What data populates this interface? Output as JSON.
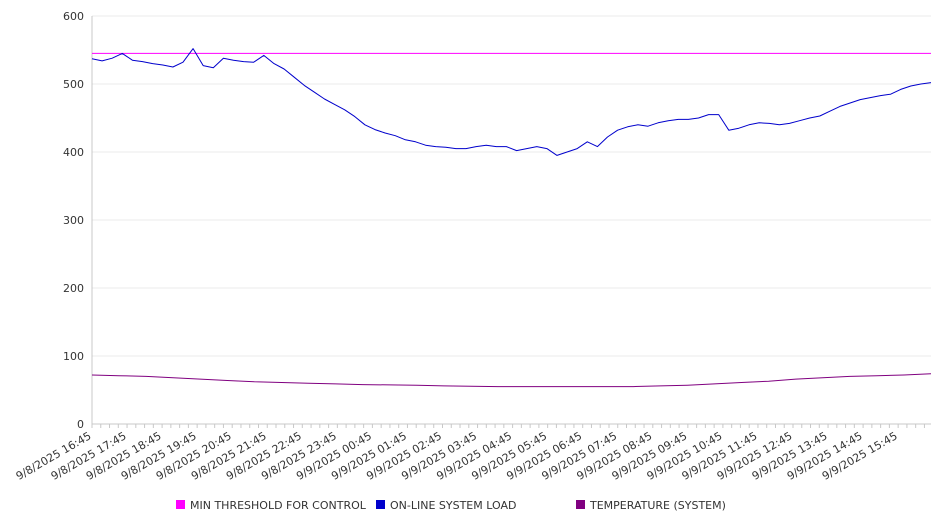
{
  "chart_data": {
    "type": "line",
    "title": "",
    "xlabel": "",
    "ylabel": "",
    "ylim": [
      0,
      600
    ],
    "yticks": [
      "0",
      "100",
      "200",
      "300",
      "400",
      "500",
      "600"
    ],
    "grid": "horizontal",
    "legend_position": "bottom",
    "x_tick_labels": [
      "9/8/2025 16:45",
      "9/8/2025 17:45",
      "9/8/2025 18:45",
      "9/8/2025 19:45",
      "9/8/2025 20:45",
      "9/8/2025 21:45",
      "9/8/2025 22:45",
      "9/8/2025 23:45",
      "9/9/2025 00:45",
      "9/9/2025 01:45",
      "9/9/2025 02:45",
      "9/9/2025 03:45",
      "9/9/2025 04:45",
      "9/9/2025 05:45",
      "9/9/2025 06:45",
      "9/9/2025 07:45",
      "9/9/2025 08:45",
      "9/9/2025 09:45",
      "9/9/2025 10:45",
      "9/9/2025 11:45",
      "9/9/2025 12:45",
      "9/9/2025 13:45",
      "9/9/2025 14:45",
      "9/9/2025 15:45"
    ],
    "x_start": "9/8/2025 16:45",
    "x_end": "9/9/2025 16:45",
    "series": [
      {
        "name": "MIN THRESHOLD FOR CONTROL",
        "color": "#ff00ff",
        "values": [
          545,
          545
        ]
      },
      {
        "name": "ON-LINE SYSTEM LOAD",
        "color": "#0000cc",
        "values": [
          537,
          534,
          538,
          545,
          535,
          533,
          530,
          528,
          525,
          532,
          552,
          527,
          524,
          538,
          535,
          533,
          532,
          542,
          530,
          522,
          510,
          498,
          488,
          478,
          470,
          462,
          452,
          440,
          433,
          428,
          424,
          418,
          415,
          410,
          408,
          407,
          405,
          405,
          408,
          410,
          408,
          408,
          402,
          405,
          408,
          405,
          395,
          400,
          405,
          415,
          408,
          422,
          432,
          437,
          440,
          438,
          443,
          446,
          448,
          448,
          450,
          455,
          455,
          432,
          435,
          440,
          443,
          442,
          440,
          442,
          446,
          450,
          453,
          460,
          467,
          472,
          477,
          480,
          483,
          485,
          492,
          497,
          500,
          502
        ]
      },
      {
        "name": "TEMPERATURE (SYSTEM)",
        "color": "#800080",
        "values": [
          72,
          71,
          70,
          68,
          66,
          64,
          62,
          61,
          60,
          59,
          58,
          57.5,
          57,
          56,
          55.5,
          55,
          55,
          55,
          55,
          55,
          55,
          56,
          57,
          59,
          61,
          63,
          66,
          68,
          70,
          71,
          72,
          74
        ]
      }
    ]
  }
}
